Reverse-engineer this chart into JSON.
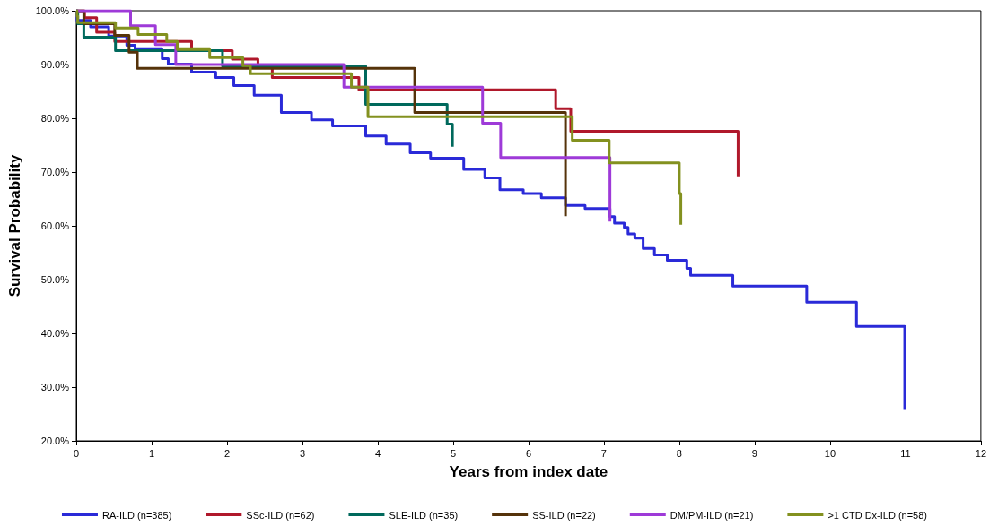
{
  "chart_data": {
    "type": "step",
    "xlabel": "Years from index date",
    "ylabel": "Survival Probability",
    "xlim": [
      0,
      12
    ],
    "xticks": [
      0,
      1,
      2,
      3,
      4,
      5,
      6,
      7,
      8,
      9,
      10,
      11,
      12
    ],
    "ylim": [
      20,
      100
    ],
    "yticks": [
      {
        "value": 20,
        "label": "20.0%"
      },
      {
        "value": 30,
        "label": "30.0%"
      },
      {
        "value": 40,
        "label": "40.0%"
      },
      {
        "value": 50,
        "label": "50.0%"
      },
      {
        "value": 60,
        "label": "60.0%"
      },
      {
        "value": 70,
        "label": "70.0%"
      },
      {
        "value": 80,
        "label": "80.0%"
      },
      {
        "value": 90,
        "label": "90.0%"
      },
      {
        "value": 100,
        "label": "100.0%"
      }
    ],
    "grid": false,
    "legend": "bottom",
    "marker": "none",
    "line_style": "solid",
    "series": [
      {
        "name": "RA-ILD (n=385)",
        "color": "#2a2ad8",
        "x": [
          0,
          0.01,
          0.19,
          0.43,
          0.67,
          0.78,
          1.14,
          1.22,
          1.53,
          1.85,
          2.09,
          2.36,
          2.72,
          3.12,
          3.4,
          3.84,
          4.11,
          4.43,
          4.7,
          5.14,
          5.42,
          5.62,
          5.93,
          6.17,
          6.49,
          6.75,
          7.08,
          7.14,
          7.27,
          7.32,
          7.41,
          7.52,
          7.67,
          7.84,
          8.1,
          8.15,
          8.71,
          9.69,
          10.35,
          10.99
        ],
        "values": [
          100,
          98.2,
          97,
          95.3,
          93.6,
          92.8,
          91.1,
          90.1,
          88.6,
          87.6,
          86.1,
          84.3,
          81.1,
          79.7,
          78.6,
          76.7,
          75.2,
          73.6,
          72.6,
          70.5,
          68.9,
          66.7,
          66,
          65.2,
          63.8,
          63.2,
          61.7,
          60.5,
          59.7,
          58.5,
          57.7,
          55.8,
          54.6,
          53.6,
          52.1,
          50.8,
          48.8,
          45.8,
          41.3,
          25.9
        ]
      },
      {
        "name": "SSc-ILD (n=62)",
        "color": "#b0182b",
        "x": [
          0,
          0.11,
          0.27,
          0.51,
          1.53,
          2.07,
          2.41,
          2.6,
          3.75,
          6.36,
          6.56,
          8.78
        ],
        "values": [
          100,
          98.7,
          96,
          94.3,
          92.6,
          91,
          89.5,
          87.6,
          85.3,
          81.8,
          77.6,
          69.2
        ]
      },
      {
        "name": "SLE-ILD (n=35)",
        "color": "#00695c",
        "x": [
          0,
          0.02,
          0.1,
          0.52,
          1.94,
          3.84,
          4.92,
          4.99
        ],
        "values": [
          100,
          97.6,
          95.1,
          92.6,
          89.7,
          82.6,
          78.9,
          74.7
        ]
      },
      {
        "name": "SS-ILD (n=22)",
        "color": "#55330a",
        "x": [
          0,
          0.1,
          0.51,
          0.7,
          0.81,
          4.49,
          6.49
        ],
        "values": [
          100,
          97.6,
          95.4,
          92.3,
          89.3,
          81.1,
          61.8
        ]
      },
      {
        "name": "DM/PM-ILD (n=21)",
        "color": "#9e3ad8",
        "x": [
          0,
          0.72,
          1.05,
          1.32,
          3.55,
          5.39,
          5.63,
          7.08
        ],
        "values": [
          100,
          97.2,
          93.7,
          90,
          85.8,
          79.1,
          72.7,
          60.8
        ]
      },
      {
        "name": ">1 CTD Dx-ILD (n=58)",
        "color": "#83911f",
        "x": [
          0,
          0.01,
          0.02,
          0.52,
          0.82,
          1.2,
          1.34,
          1.77,
          2.21,
          2.31,
          3.65,
          3.87,
          6.58,
          7.07,
          8,
          8.02
        ],
        "values": [
          100,
          99,
          97.8,
          96.8,
          95.6,
          94.3,
          92.8,
          91.3,
          89.8,
          88.3,
          85.8,
          80.3,
          75.9,
          71.7,
          66,
          60.2
        ]
      }
    ]
  }
}
